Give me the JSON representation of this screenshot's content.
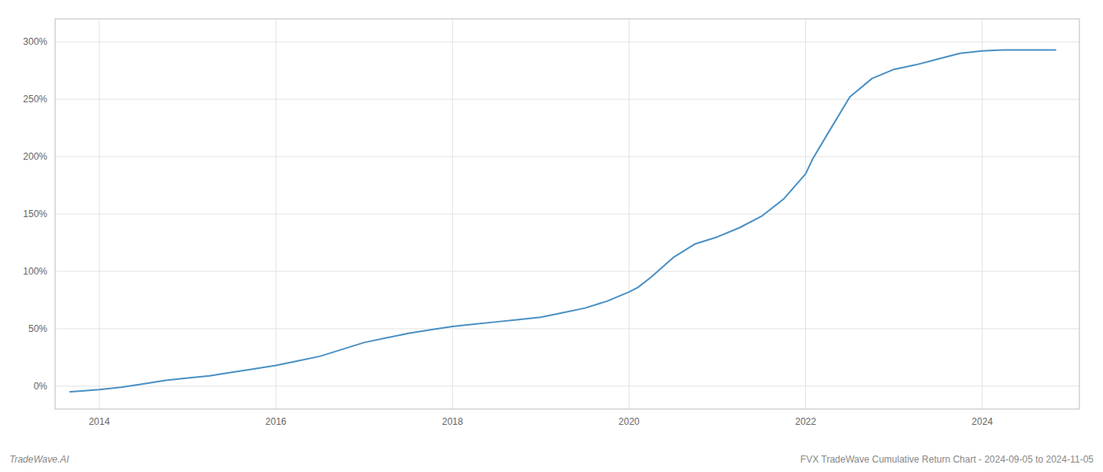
{
  "chart_data": {
    "type": "line",
    "x": [
      2013.67,
      2013.83,
      2014.0,
      2014.25,
      2014.5,
      2014.75,
      2015.0,
      2015.25,
      2015.5,
      2015.75,
      2016.0,
      2016.25,
      2016.5,
      2016.75,
      2017.0,
      2017.25,
      2017.5,
      2017.75,
      2018.0,
      2018.25,
      2018.5,
      2018.75,
      2019.0,
      2019.25,
      2019.5,
      2019.75,
      2020.0,
      2020.1,
      2020.25,
      2020.5,
      2020.75,
      2021.0,
      2021.25,
      2021.5,
      2021.75,
      2022.0,
      2022.08,
      2022.25,
      2022.5,
      2022.75,
      2023.0,
      2023.25,
      2023.5,
      2023.75,
      2024.0,
      2024.25,
      2024.5,
      2024.75,
      2024.83
    ],
    "values": [
      -5,
      -4,
      -3,
      -1,
      2,
      5,
      7,
      9,
      12,
      15,
      18,
      22,
      26,
      32,
      38,
      42,
      46,
      49,
      52,
      54,
      56,
      58,
      60,
      64,
      68,
      74,
      82,
      86,
      95,
      112,
      124,
      130,
      138,
      148,
      163,
      185,
      198,
      220,
      252,
      268,
      276,
      280,
      285,
      290,
      292,
      293,
      293,
      293,
      293
    ],
    "color": "#4a90c4",
    "xlim": [
      2013.5,
      2025.1
    ],
    "ylim": [
      -20,
      320
    ],
    "xticks": [
      2014,
      2016,
      2018,
      2020,
      2022,
      2024
    ],
    "yticks": [
      {
        "value": 0,
        "label": "0%"
      },
      {
        "value": 50,
        "label": "50%"
      },
      {
        "value": 100,
        "label": "100%"
      },
      {
        "value": 150,
        "label": "150%"
      },
      {
        "value": 200,
        "label": "200%"
      },
      {
        "value": 250,
        "label": "250%"
      },
      {
        "value": 300,
        "label": "300%"
      }
    ],
    "grid": true,
    "annotations": [
      "TradeWave.AI",
      "FVX TradeWave Cumulative Return Chart - 2024-09-05 to 2024-11-05"
    ]
  }
}
